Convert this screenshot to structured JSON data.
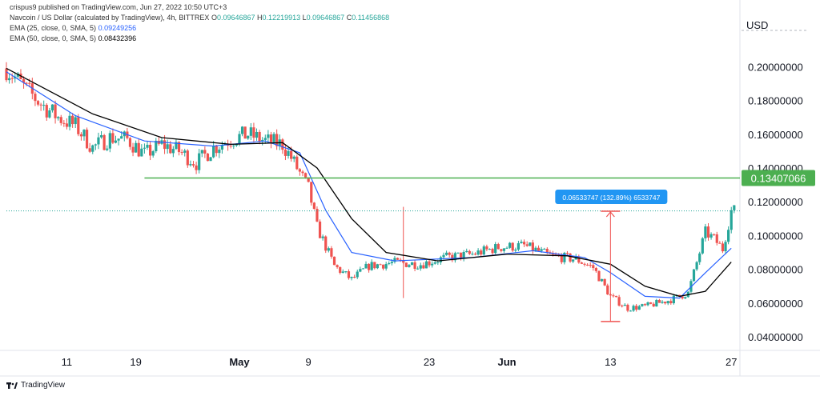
{
  "header": {
    "publisher_line": "crispus9 published on TradingView.com, Jun 27, 2022 10:50 UTC+3",
    "symbol_line": "Navcoin / US Dollar (calculated by TradingView), 4h, BITTREX",
    "ohlc": {
      "o_label": "O",
      "o": "0.09646867",
      "h_label": "H",
      "h": "0.12219913",
      "l_label": "L",
      "l": "0.09646867",
      "c_label": "C",
      "c": "0.11456868"
    },
    "ema25": {
      "label": "EMA (25, close, 0, SMA, 5)",
      "value": "0.09249256"
    },
    "ema50": {
      "label": "EMA (50, close, 0, SMA, 5)",
      "value": "0.08432396"
    }
  },
  "axis_currency": "USD",
  "footer": {
    "brand": "TradingView"
  },
  "colors": {
    "up": "#26a69a",
    "down": "#ef5350",
    "ema25": "#2962ff",
    "ema50": "#000000",
    "level": "#4caf50",
    "measure_bg": "#2196f3"
  },
  "chart_data": {
    "type": "candlestick",
    "title": "Navcoin / US Dollar (calculated by TradingView), 4h, BITTREX",
    "ylabel": "USD",
    "ylim": [
      0.032,
      0.212
    ],
    "y_ticks": [
      "0.20000000",
      "0.18000000",
      "0.16000000",
      "0.14000000",
      "0.12000000",
      "0.10000000",
      "0.08000000",
      "0.06000000",
      "0.04000000"
    ],
    "y_tick_values": [
      0.2,
      0.18,
      0.16,
      0.14,
      0.12,
      0.1,
      0.08,
      0.06,
      0.04
    ],
    "x_ticks": [
      "11",
      "19",
      "May",
      "9",
      "23",
      "Jun",
      "13",
      "27"
    ],
    "x_tick_dates": [
      "2022-04-11",
      "2022-04-19",
      "2022-05-01",
      "2022-05-09",
      "2022-05-23",
      "2022-06-01",
      "2022-06-13",
      "2022-06-27"
    ],
    "x_range": [
      "2022-04-04",
      "2022-06-28"
    ],
    "close_series": [
      [
        "2022-04-04",
        0.199
      ],
      [
        "2022-04-06",
        0.188
      ],
      [
        "2022-04-08",
        0.178
      ],
      [
        "2022-04-10",
        0.17
      ],
      [
        "2022-04-12",
        0.165
      ],
      [
        "2022-04-14",
        0.152
      ],
      [
        "2022-04-16",
        0.158
      ],
      [
        "2022-04-18",
        0.157
      ],
      [
        "2022-04-20",
        0.148
      ],
      [
        "2022-04-22",
        0.154
      ],
      [
        "2022-04-24",
        0.15
      ],
      [
        "2022-04-26",
        0.143
      ],
      [
        "2022-04-28",
        0.152
      ],
      [
        "2022-04-30",
        0.157
      ],
      [
        "2022-05-02",
        0.16
      ],
      [
        "2022-05-04",
        0.156
      ],
      [
        "2022-05-06",
        0.154
      ],
      [
        "2022-05-07",
        0.146
      ],
      [
        "2022-05-09",
        0.128
      ],
      [
        "2022-05-10",
        0.105
      ],
      [
        "2022-05-12",
        0.082
      ],
      [
        "2022-05-14",
        0.074
      ],
      [
        "2022-05-16",
        0.082
      ],
      [
        "2022-05-19",
        0.084
      ],
      [
        "2022-05-22",
        0.083
      ],
      [
        "2022-05-25",
        0.087
      ],
      [
        "2022-05-28",
        0.089
      ],
      [
        "2022-05-31",
        0.093
      ],
      [
        "2022-06-03",
        0.094
      ],
      [
        "2022-06-06",
        0.088
      ],
      [
        "2022-06-09",
        0.086
      ],
      [
        "2022-06-11",
        0.081
      ],
      [
        "2022-06-13",
        0.064
      ],
      [
        "2022-06-15",
        0.057
      ],
      [
        "2022-06-17",
        0.058
      ],
      [
        "2022-06-20",
        0.062
      ],
      [
        "2022-06-22",
        0.066
      ],
      [
        "2022-06-23",
        0.084
      ],
      [
        "2022-06-24",
        0.102
      ],
      [
        "2022-06-25",
        0.098
      ],
      [
        "2022-06-26",
        0.092
      ],
      [
        "2022-06-27",
        0.1146
      ]
    ],
    "ema25_series": [
      [
        "2022-04-04",
        0.197
      ],
      [
        "2022-04-12",
        0.171
      ],
      [
        "2022-04-20",
        0.156
      ],
      [
        "2022-04-28",
        0.153
      ],
      [
        "2022-05-04",
        0.156
      ],
      [
        "2022-05-08",
        0.149
      ],
      [
        "2022-05-11",
        0.115
      ],
      [
        "2022-05-14",
        0.09
      ],
      [
        "2022-05-19",
        0.085
      ],
      [
        "2022-05-28",
        0.087
      ],
      [
        "2022-06-04",
        0.091
      ],
      [
        "2022-06-10",
        0.087
      ],
      [
        "2022-06-13",
        0.078
      ],
      [
        "2022-06-17",
        0.064
      ],
      [
        "2022-06-21",
        0.063
      ],
      [
        "2022-06-24",
        0.078
      ],
      [
        "2022-06-27",
        0.0925
      ]
    ],
    "ema50_series": [
      [
        "2022-04-04",
        0.199
      ],
      [
        "2022-04-14",
        0.172
      ],
      [
        "2022-04-22",
        0.158
      ],
      [
        "2022-04-30",
        0.154
      ],
      [
        "2022-05-06",
        0.155
      ],
      [
        "2022-05-10",
        0.14
      ],
      [
        "2022-05-14",
        0.11
      ],
      [
        "2022-05-18",
        0.09
      ],
      [
        "2022-05-24",
        0.085
      ],
      [
        "2022-06-01",
        0.089
      ],
      [
        "2022-06-08",
        0.088
      ],
      [
        "2022-06-13",
        0.083
      ],
      [
        "2022-06-17",
        0.07
      ],
      [
        "2022-06-21",
        0.064
      ],
      [
        "2022-06-24",
        0.067
      ],
      [
        "2022-06-27",
        0.0843
      ]
    ],
    "horizontal_level": {
      "value": 0.13407066,
      "label": "0.13407066",
      "from": "2022-04-20"
    },
    "dotted_level": {
      "value": 0.1146
    },
    "measure": {
      "from_value": 0.0491,
      "to_value": 0.1144,
      "date": "2022-06-13",
      "label": "0.06533747 (132.89%) 6533747"
    },
    "spike": {
      "date": "2022-05-20",
      "high": 0.117,
      "low": 0.063
    }
  }
}
